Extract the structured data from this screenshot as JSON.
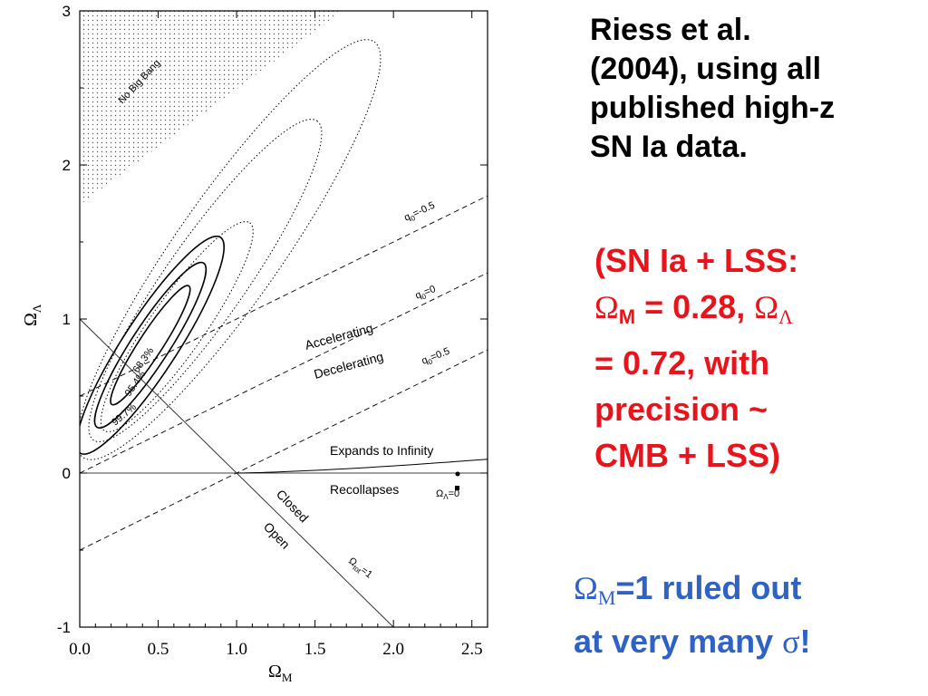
{
  "chart_data": {
    "type": "contour",
    "x_axis": {
      "label": "Ω",
      "label_sub": "M",
      "range": [
        0.0,
        2.6
      ],
      "ticks": [
        "0.0",
        "0.5",
        "1.0",
        "1.5",
        "2.0",
        "2.5"
      ]
    },
    "y_axis": {
      "label": "Ω",
      "label_sub": "Λ",
      "range": [
        -1.0,
        3.0
      ],
      "ticks": [
        "-1",
        "0",
        "1",
        "2",
        "3"
      ]
    },
    "regions": {
      "no_big_bang": "No Big Bang"
    },
    "confidence_contours": [
      {
        "label": "68.3%",
        "center": [
          0.4,
          0.8
        ],
        "style": "solid"
      },
      {
        "label": "95.4%",
        "center": [
          0.4,
          0.8
        ],
        "style": "solid"
      },
      {
        "label": "99.7%",
        "center": [
          0.4,
          0.8
        ],
        "style": "solid"
      }
    ],
    "deceleration_lines": [
      {
        "label": "q₀=-0.5",
        "omega_L_at_omega_M_0": 0.5
      },
      {
        "label": "q₀=0",
        "omega_L_at_omega_M_0": 0.0
      },
      {
        "label": "q₀=0.5",
        "omega_L_at_omega_M_0": -0.5
      }
    ],
    "flat_line": {
      "label": "Ω",
      "label_sub": "tot",
      "label_suffix": "=1"
    },
    "labels": {
      "accelerating": "Accelerating",
      "decelerating": "Decelerating",
      "expands": "Expands to Infinity",
      "recollapses": "Recollapses",
      "closed": "Closed",
      "open": "Open",
      "lambda_zero_symbol": "Ω",
      "lambda_zero_sub": "Λ",
      "lambda_zero_suffix": "=0"
    }
  },
  "text_panel": {
    "citation": "Riess et al.\n(2004), using all\npublished high-z\nSN Ia data.",
    "result": {
      "line1": "(SN Ia + LSS:",
      "omega_symbol": "Ω",
      "m_sub": "M",
      "omega_m_value": " = 0.28,  ",
      "lambda_sub": "Λ",
      "line3": "= 0.72, with",
      "line4": "precision ~",
      "line5": "CMB + LSS)"
    },
    "conclusion": {
      "omega_symbol": "Ω",
      "m_sub": "M",
      "line1_rest": "=1 ruled out",
      "line2": "at very many ",
      "sigma": "σ",
      "exclaim": "!"
    }
  },
  "colors": {
    "result_text": "#e8141c",
    "conclusion_text": "#2f62c5",
    "plot_ink": "#000000"
  }
}
